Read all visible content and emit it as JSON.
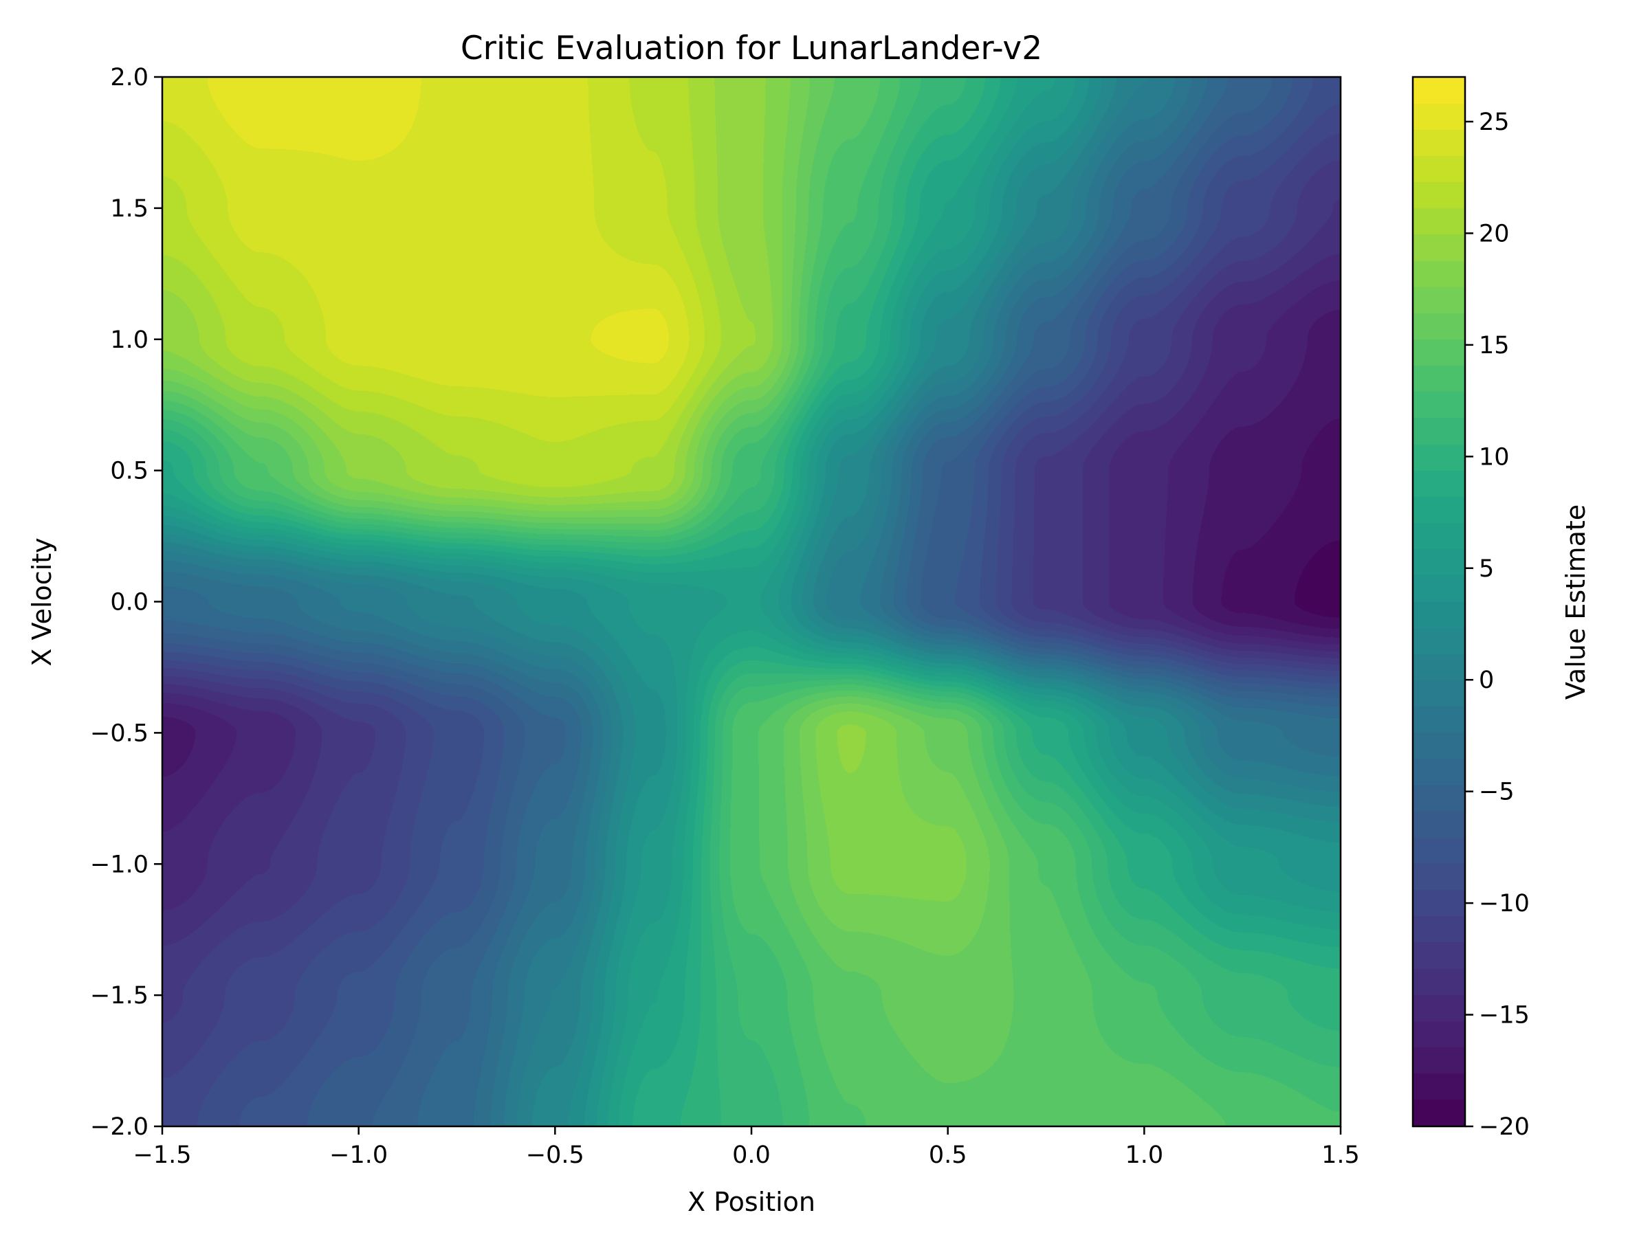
{
  "chart_data": {
    "type": "heatmap",
    "title": "Critic Evaluation for LunarLander-v2",
    "xlabel": "X Position",
    "ylabel": "X Velocity",
    "xlim": [
      -1.5,
      1.5
    ],
    "ylim": [
      -2.0,
      2.0
    ],
    "x_ticks": [
      -1.5,
      -1.0,
      -0.5,
      0.0,
      0.5,
      1.0,
      1.5
    ],
    "x_tick_labels": [
      "−1.5",
      "−1.0",
      "−0.5",
      "0.0",
      "0.5",
      "1.0",
      "1.5"
    ],
    "y_ticks": [
      -2.0,
      -1.5,
      -1.0,
      -0.5,
      0.0,
      0.5,
      1.0,
      1.5,
      2.0
    ],
    "y_tick_labels": [
      "−2.0",
      "−1.5",
      "−1.0",
      "−0.5",
      "0.0",
      "0.5",
      "1.0",
      "1.5",
      "2.0"
    ],
    "colormap": "viridis",
    "filled_contour": true,
    "grid": false,
    "x": [
      -1.5,
      -1.25,
      -1.0,
      -0.75,
      -0.5,
      -0.25,
      0.0,
      0.25,
      0.5,
      0.75,
      1.0,
      1.25,
      1.5
    ],
    "y": [
      2.0,
      1.5,
      1.0,
      0.5,
      0.0,
      -0.5,
      -1.0,
      -1.5,
      -2.0
    ],
    "z": [
      [
        24,
        25.5,
        25,
        24.5,
        24,
        22,
        19,
        15,
        11,
        6,
        0,
        -5,
        -9
      ],
      [
        22,
        24,
        24.5,
        24.5,
        24,
        22.5,
        19,
        13,
        7,
        1,
        -5,
        -10,
        -13
      ],
      [
        19,
        22,
        24,
        24.5,
        24.5,
        25,
        20,
        10,
        2,
        -5,
        -11,
        -15,
        -17
      ],
      [
        8,
        14,
        19,
        21,
        22,
        21,
        12,
        2,
        -6,
        -12,
        -15,
        -17,
        -18
      ],
      [
        -4,
        -3,
        -1,
        1,
        3,
        5,
        6,
        -1,
        -7,
        -12,
        -15,
        -18,
        -19.5
      ],
      [
        -17,
        -15,
        -12,
        -9,
        -5,
        3,
        14,
        19,
        16,
        9,
        3,
        -2,
        -3
      ],
      [
        -15,
        -13,
        -11,
        -8,
        -3,
        5,
        14,
        18,
        18,
        14,
        9,
        5,
        4
      ],
      [
        -12,
        -10,
        -8,
        -5,
        0,
        7,
        12,
        15,
        16,
        15,
        13,
        11,
        10
      ],
      [
        -10,
        -8,
        -6,
        -4,
        2,
        9,
        11,
        14,
        15,
        15,
        15,
        14,
        13
      ]
    ],
    "colorbar": {
      "label": "Value Estimate",
      "range": [
        -20,
        27
      ],
      "ticks": [
        -20,
        -15,
        -10,
        -5,
        0,
        5,
        10,
        15,
        20,
        25
      ],
      "tick_labels": [
        "−20",
        "−15",
        "−10",
        "−5",
        "0",
        "5",
        "10",
        "15",
        "20",
        "25"
      ]
    }
  }
}
